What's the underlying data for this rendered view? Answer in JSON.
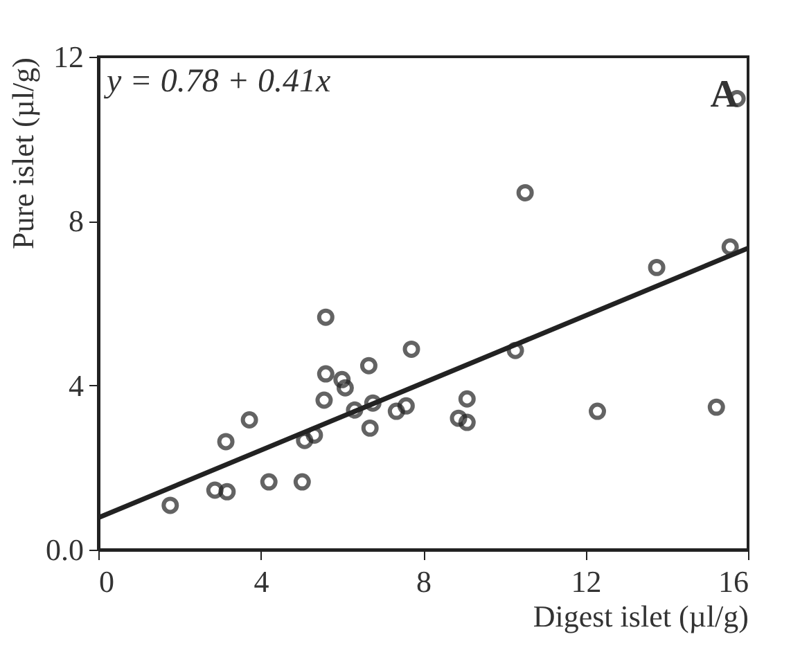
{
  "chart_data": {
    "type": "scatter",
    "xlabel": "Digest islet (µl/g)",
    "ylabel": "Pure islet (µl/g)",
    "xlim": [
      0,
      16
    ],
    "ylim": [
      0,
      12
    ],
    "xticks": [
      0,
      4,
      8,
      12,
      16
    ],
    "yticks": [
      {
        "value": 0,
        "label": "0.0"
      },
      4,
      8,
      12
    ],
    "grid": false,
    "annotations": [
      "y = 0.78 + 0.41x",
      "A"
    ],
    "series": [
      {
        "color": "#222222",
        "marker": "circle",
        "x": [
          1.77,
          2.87,
          3.17,
          3.14,
          3.72,
          4.2,
          5.02,
          5.08,
          5.32,
          5.56,
          5.6,
          5.6,
          6.0,
          6.08,
          6.31,
          6.66,
          6.69,
          6.76,
          7.34,
          7.58,
          7.71,
          8.87,
          9.08,
          9.08,
          10.27,
          10.51,
          12.29,
          13.75,
          15.22,
          15.56,
          15.73
        ],
        "values": [
          1.08,
          1.45,
          1.41,
          2.63,
          3.16,
          1.65,
          1.65,
          2.66,
          2.79,
          3.64,
          4.28,
          5.66,
          4.14,
          3.94,
          3.4,
          4.48,
          2.96,
          3.57,
          3.37,
          3.5,
          4.88,
          3.2,
          3.67,
          3.1,
          4.85,
          8.69,
          3.37,
          6.87,
          3.47,
          7.37,
          10.98
        ]
      },
      {
        "type": "line",
        "color": "#222222",
        "x": [
          0,
          16
        ],
        "values": [
          0.78,
          7.34
        ]
      }
    ]
  }
}
